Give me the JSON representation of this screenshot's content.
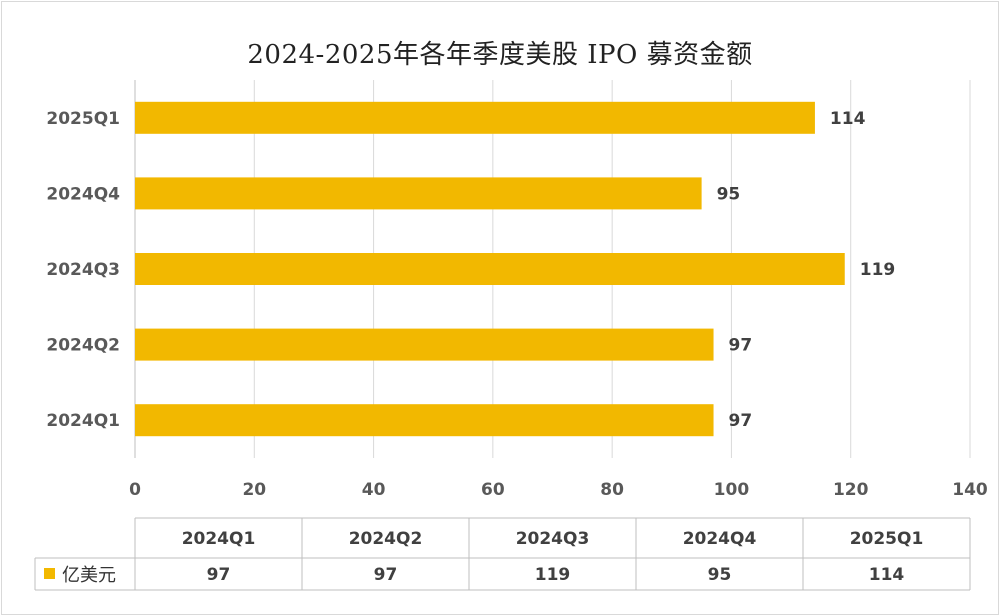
{
  "chart_data": {
    "type": "bar",
    "orientation": "horizontal",
    "title": "2024-2025年各年季度美股 IPO 募资金额",
    "categories": [
      "2024Q1",
      "2024Q2",
      "2024Q3",
      "2024Q4",
      "2025Q1"
    ],
    "series": [
      {
        "name": "亿美元",
        "values": [
          97,
          97,
          119,
          95,
          114
        ]
      }
    ],
    "xlim": [
      0,
      140
    ],
    "x_ticks": [
      0,
      20,
      40,
      60,
      80,
      100,
      120,
      140
    ],
    "grid": true,
    "data_labels": true,
    "data_table": true,
    "bar_color": "#F2B800",
    "grid_color": "#d9d9d9"
  }
}
